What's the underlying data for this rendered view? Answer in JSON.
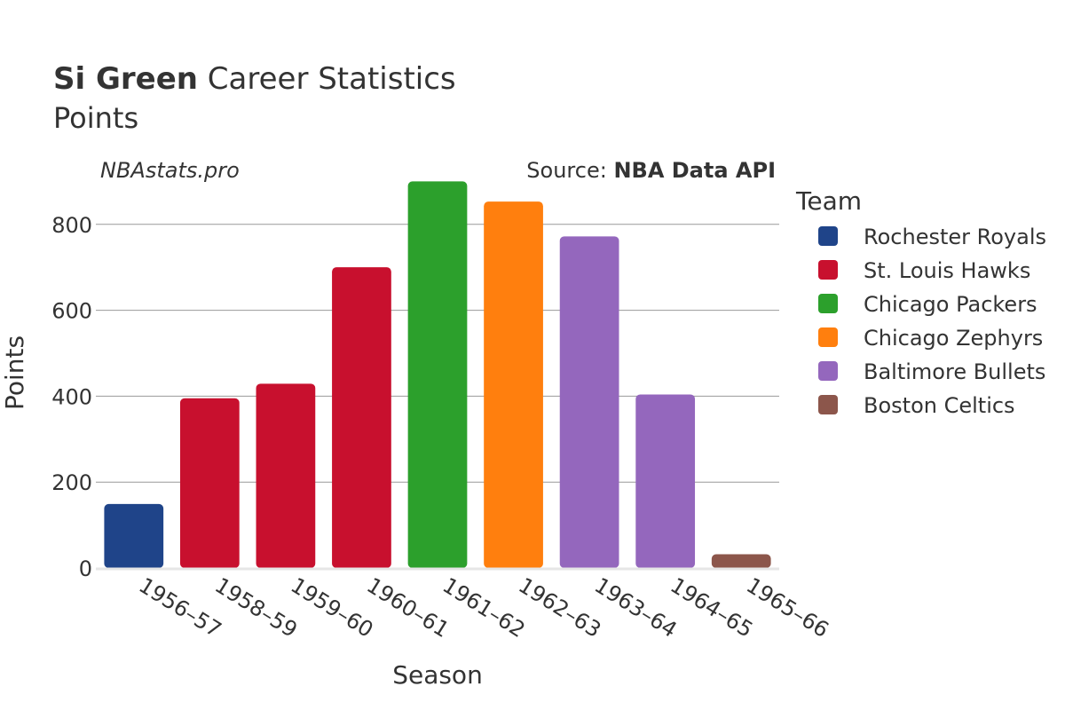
{
  "title": {
    "player": "Si Green",
    "rest": "Career Statistics",
    "subtitle": "Points"
  },
  "watermark": "NBAstats.pro",
  "source": {
    "prefix": "Source: ",
    "name": "NBA Data API"
  },
  "legend": {
    "title": "Team",
    "items": [
      {
        "label": "Rochester Royals",
        "color": "#1f4489"
      },
      {
        "label": "St. Louis Hawks",
        "color": "#c8102e"
      },
      {
        "label": "Chicago Packers",
        "color": "#2ca02c"
      },
      {
        "label": "Chicago Zephyrs",
        "color": "#ff7f0e"
      },
      {
        "label": "Baltimore Bullets",
        "color": "#9467bd"
      },
      {
        "label": "Boston Celtics",
        "color": "#8c564b"
      }
    ]
  },
  "chart_data": {
    "type": "bar",
    "xlabel": "Season",
    "ylabel": "Points",
    "ylim": [
      0,
      940
    ],
    "yticks": [
      0,
      200,
      400,
      600,
      800
    ],
    "grid": true,
    "legend_position": "right",
    "categories": [
      "1956–57",
      "1958–59",
      "1959–60",
      "1960–61",
      "1961–62",
      "1962–63",
      "1963–64",
      "1964–65",
      "1965–66"
    ],
    "values": [
      149,
      395,
      429,
      700,
      900,
      853,
      772,
      404,
      32
    ],
    "teams": [
      "Rochester Royals",
      "St. Louis Hawks",
      "St. Louis Hawks",
      "St. Louis Hawks",
      "Chicago Packers",
      "Chicago Zephyrs",
      "Baltimore Bullets",
      "Baltimore Bullets",
      "Boston Celtics"
    ]
  }
}
